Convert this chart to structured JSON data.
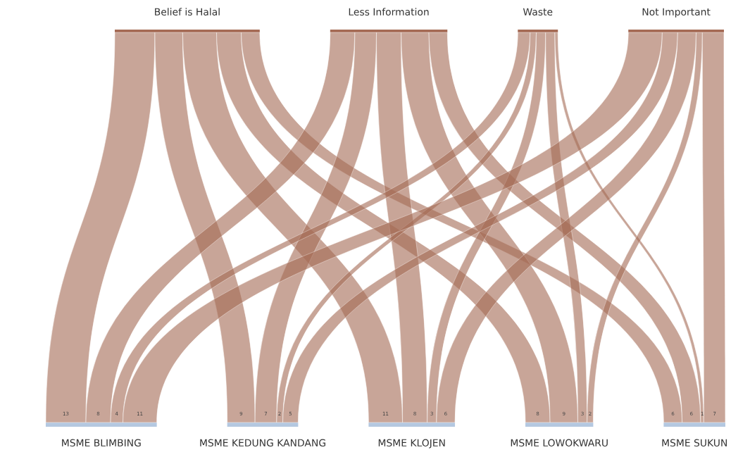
{
  "chart_data": {
    "type": "other",
    "categories": [
      "MSME BLIMBING",
      "MSME KEDUNG KANDANG",
      "MSME KLOJEN",
      "MSME LOWOKWARU",
      "MSME SUKUN"
    ],
    "colors": [
      "#b4c8e0",
      "#b4c8e0",
      "#b4c8e0",
      "#b4c8e0",
      "#b4c8e0"
    ],
    "series": [
      {
        "name": "Belief is Halal",
        "color": "#a56b55",
        "values": [
          13,
          9,
          11,
          8,
          6
        ]
      },
      {
        "name": "Less Information",
        "color": "#a56b55",
        "values": [
          8,
          7,
          8,
          9,
          6
        ]
      },
      {
        "name": "Waste",
        "color": "#a56b55",
        "values": [
          4,
          2,
          3,
          3,
          1
        ]
      },
      {
        "name": "Not Important",
        "color": "#a56b55",
        "values": [
          11,
          5,
          6,
          2,
          7
        ]
      }
    ],
    "data_labels": true
  }
}
